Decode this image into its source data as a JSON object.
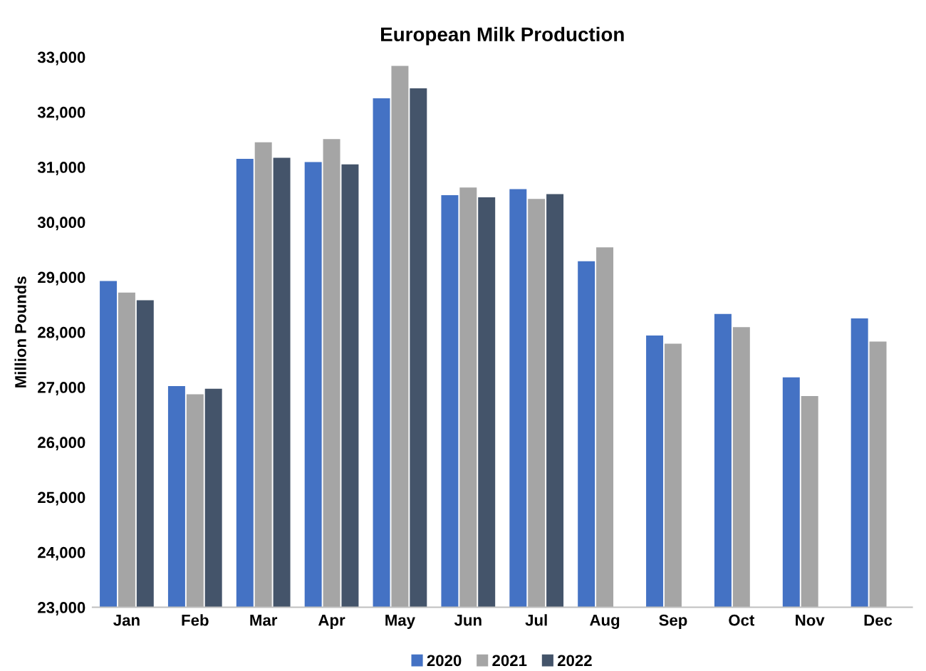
{
  "chart_data": {
    "type": "bar",
    "title": "European Milk Production",
    "ylabel": "Million Pounds",
    "categories": [
      "Jan",
      "Feb",
      "Mar",
      "Apr",
      "May",
      "Jun",
      "Jul",
      "Aug",
      "Sep",
      "Oct",
      "Nov",
      "Dec"
    ],
    "series": [
      {
        "name": "2020",
        "color": "#4472c4",
        "values": [
          28930,
          27020,
          31150,
          31090,
          32250,
          30490,
          30600,
          29290,
          27940,
          28330,
          27180,
          28250
        ]
      },
      {
        "name": "2021",
        "color": "#a5a5a5",
        "values": [
          28720,
          26870,
          31450,
          31510,
          32840,
          30630,
          30420,
          29540,
          27790,
          28090,
          26840,
          27830
        ]
      },
      {
        "name": "2022",
        "color": "#44546a",
        "values": [
          28580,
          26970,
          31170,
          31050,
          32430,
          30450,
          30510,
          null,
          null,
          null,
          null,
          null
        ]
      }
    ],
    "ylim": [
      23000,
      33000
    ],
    "yticks": [
      {
        "value": 23000,
        "label": "23,000"
      },
      {
        "value": 24000,
        "label": "24,000"
      },
      {
        "value": 25000,
        "label": "25,000"
      },
      {
        "value": 26000,
        "label": "26,000"
      },
      {
        "value": 27000,
        "label": "27,000"
      },
      {
        "value": 28000,
        "label": "28,000"
      },
      {
        "value": 29000,
        "label": "29,000"
      },
      {
        "value": 30000,
        "label": "30,000"
      },
      {
        "value": 31000,
        "label": "31,000"
      },
      {
        "value": 32000,
        "label": "32,000"
      },
      {
        "value": 33000,
        "label": "33,000"
      }
    ],
    "grid": false,
    "legend": "bottom"
  }
}
